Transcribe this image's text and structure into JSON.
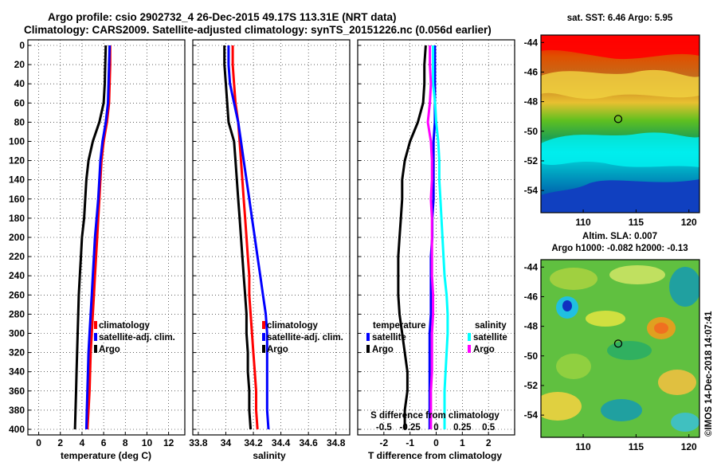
{
  "header": {
    "line1": "Argo profile: csio 2902732_4 26-Dec-2015 49.17S 113.31E (NRT data)",
    "line2": "Climatology: CARS2009. Satellite-adjusted climatology: synTS_20151226.nc (0.056d earlier)"
  },
  "colors": {
    "climatology": "#ff0000",
    "satellite": "#0000ff",
    "argo": "#000000",
    "sat_salinity": "#00ffff",
    "clim_salinity_diff": "#ff00ff"
  },
  "chart_data": [
    {
      "type": "line",
      "id": "temperature",
      "xlabel": "temperature (deg C)",
      "ylabel": "",
      "xlim": [
        -1,
        13.5
      ],
      "ylim": [
        0,
        400
      ],
      "x_ticks": [
        "0",
        "2",
        "4",
        "6",
        "8",
        "10",
        "12"
      ],
      "x_tick_values": [
        0,
        2,
        4,
        6,
        8,
        10,
        12
      ],
      "y_ticks": [
        "0",
        "20",
        "40",
        "60",
        "80",
        "100",
        "120",
        "140",
        "160",
        "180",
        "200",
        "220",
        "240",
        "260",
        "280",
        "300",
        "320",
        "340",
        "360",
        "380",
        "400"
      ],
      "depth": [
        0,
        20,
        40,
        60,
        80,
        100,
        120,
        140,
        160,
        180,
        200,
        220,
        240,
        260,
        280,
        300,
        320,
        340,
        360,
        380,
        400
      ],
      "series": [
        {
          "name": "climatology",
          "color": "#ff0000",
          "values": [
            6.6,
            6.6,
            6.55,
            6.5,
            6.3,
            6.0,
            5.8,
            5.7,
            5.6,
            5.5,
            5.4,
            5.3,
            5.2,
            5.1,
            5.0,
            4.9,
            4.8,
            4.75,
            4.7,
            4.6,
            4.5
          ]
        },
        {
          "name": "satellite-adj. clim.",
          "color": "#0000ff",
          "values": [
            6.55,
            6.5,
            6.45,
            6.4,
            6.2,
            5.9,
            5.7,
            5.6,
            5.5,
            5.35,
            5.2,
            5.1,
            5.0,
            4.9,
            4.8,
            4.7,
            4.6,
            4.55,
            4.5,
            4.45,
            4.4
          ]
        },
        {
          "name": "Argo",
          "color": "#000000",
          "values": [
            6.2,
            6.15,
            6.1,
            6.0,
            5.6,
            5.0,
            4.6,
            4.4,
            4.3,
            4.2,
            4.0,
            3.9,
            3.8,
            3.7,
            3.65,
            3.6,
            3.55,
            3.5,
            3.45,
            3.4,
            3.35
          ]
        }
      ],
      "legend": [
        "climatology",
        "satellite-adj. clim.",
        "Argo"
      ]
    },
    {
      "type": "line",
      "id": "salinity",
      "xlabel": "salinity",
      "xlim": [
        33.76,
        34.9
      ],
      "ylim": [
        0,
        400
      ],
      "x_ticks": [
        "33.8",
        "34",
        "34.2",
        "34.4",
        "34.6",
        "34.8"
      ],
      "x_tick_values": [
        33.8,
        34.0,
        34.2,
        34.4,
        34.6,
        34.8
      ],
      "depth": [
        0,
        20,
        40,
        60,
        80,
        100,
        120,
        140,
        160,
        180,
        200,
        220,
        240,
        260,
        280,
        300,
        320,
        340,
        360,
        380,
        400
      ],
      "series": [
        {
          "name": "climatology",
          "color": "#ff0000",
          "values": [
            34.05,
            34.05,
            34.06,
            34.07,
            34.09,
            34.1,
            34.11,
            34.12,
            34.13,
            34.14,
            34.15,
            34.16,
            34.17,
            34.17,
            34.18,
            34.19,
            34.2,
            34.21,
            34.22,
            34.22,
            34.23
          ]
        },
        {
          "name": "satellite-adj. clim.",
          "color": "#0000ff",
          "values": [
            34.02,
            34.02,
            34.03,
            34.06,
            34.09,
            34.11,
            34.13,
            34.15,
            34.17,
            34.19,
            34.21,
            34.23,
            34.25,
            34.27,
            34.29,
            34.3,
            34.3,
            34.3,
            34.3,
            34.3,
            34.31
          ]
        },
        {
          "name": "Argo",
          "color": "#000000",
          "values": [
            33.99,
            33.99,
            34.0,
            34.01,
            34.02,
            34.06,
            34.07,
            34.08,
            34.09,
            34.1,
            34.11,
            34.12,
            34.13,
            34.14,
            34.15,
            34.15,
            34.16,
            34.16,
            34.17,
            34.17,
            34.18
          ]
        }
      ],
      "legend": [
        "climatology",
        "satellite-adj. clim.",
        "Argo"
      ]
    },
    {
      "type": "line",
      "id": "difference",
      "xlabel": "T difference from climatology",
      "xlabel_top": "S difference from climatology",
      "xlim": [
        -3.0,
        3.0
      ],
      "ylim": [
        0,
        400
      ],
      "x_ticks": [
        "-2",
        "-1",
        "0",
        "1",
        "2"
      ],
      "x_tick_values": [
        -2,
        -1,
        0,
        1,
        2
      ],
      "s_ticks": [
        "-0.5",
        "-0.25",
        "0",
        "0.25",
        "0.5"
      ],
      "s_tick_values": [
        -0.5,
        -0.25,
        0,
        0.25,
        0.5
      ],
      "depth": [
        0,
        20,
        40,
        60,
        80,
        100,
        120,
        140,
        160,
        180,
        200,
        220,
        240,
        260,
        280,
        300,
        320,
        340,
        360,
        380,
        400
      ],
      "series": [
        {
          "name": "temperature satellite",
          "color": "#0000ff",
          "values": [
            -0.05,
            -0.05,
            -0.05,
            -0.05,
            -0.05,
            -0.1,
            -0.1,
            -0.1,
            -0.1,
            -0.15,
            -0.15,
            -0.2,
            -0.2,
            -0.2,
            -0.2,
            -0.25,
            -0.25,
            -0.25,
            -0.25,
            -0.25,
            -0.25
          ]
        },
        {
          "name": "temperature Argo",
          "color": "#000000",
          "values": [
            -0.4,
            -0.45,
            -0.45,
            -0.5,
            -0.7,
            -1.0,
            -1.2,
            -1.3,
            -1.3,
            -1.35,
            -1.4,
            -1.45,
            -1.45,
            -1.45,
            -1.4,
            -1.3,
            -1.2,
            -1.1,
            -1.1,
            -1.2,
            -1.2
          ]
        },
        {
          "name": "salinity satellite",
          "color": "#00ffff",
          "values": [
            -0.03,
            -0.03,
            -0.03,
            -0.01,
            0.0,
            0.02,
            0.03,
            0.03,
            0.04,
            0.05,
            0.06,
            0.07,
            0.08,
            0.1,
            0.11,
            0.11,
            0.1,
            0.09,
            0.08,
            0.08,
            0.08
          ]
        },
        {
          "name": "salinity Argo",
          "color": "#ff00ff",
          "values": [
            -0.06,
            -0.06,
            -0.05,
            -0.06,
            -0.08,
            -0.05,
            -0.04,
            -0.04,
            -0.05,
            -0.04,
            -0.04,
            -0.04,
            -0.04,
            -0.03,
            -0.03,
            -0.04,
            -0.04,
            -0.04,
            -0.05,
            -0.05,
            -0.05
          ]
        }
      ],
      "legend_temperature_title": "temperature",
      "legend_salinity_title": "salinity",
      "legend_temperature": [
        "satellite",
        "Argo"
      ],
      "legend_salinity": [
        "satellite",
        "Argo"
      ]
    },
    {
      "type": "heatmap",
      "id": "sst-map",
      "title": "sat. SST: 6.46 Argo: 5.95",
      "x_ticks": [
        "110",
        "115",
        "120"
      ],
      "x_tick_values": [
        110,
        115,
        120
      ],
      "y_ticks": [
        "-44",
        "-46",
        "-48",
        "-50",
        "-52",
        "-54"
      ],
      "y_tick_values": [
        -44,
        -46,
        -48,
        -50,
        -52,
        -54
      ],
      "xlim": [
        106,
        121
      ],
      "ylim": [
        -55.5,
        -43.5
      ],
      "argo_position": [
        113.31,
        -49.17
      ]
    },
    {
      "type": "heatmap",
      "id": "sla-map",
      "title_line1": "Altim. SLA: 0.007",
      "title_line2": "Argo h1000: -0.082 h2000: -0.13",
      "x_ticks": [
        "110",
        "115",
        "120"
      ],
      "x_tick_values": [
        110,
        115,
        120
      ],
      "y_ticks": [
        "-44",
        "-46",
        "-48",
        "-50",
        "-52",
        "-54"
      ],
      "y_tick_values": [
        -44,
        -46,
        -48,
        -50,
        -52,
        -54
      ],
      "xlim": [
        106,
        121
      ],
      "ylim": [
        -55.5,
        -43.5
      ],
      "argo_position": [
        113.31,
        -49.17
      ]
    }
  ],
  "credit": "©IMOS 14-Dec-2018 14:07:41"
}
